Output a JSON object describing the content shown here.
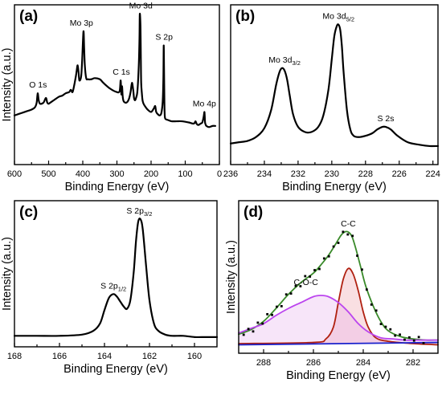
{
  "chart_data": [
    {
      "type": "line",
      "panel_label": "(a)",
      "xlabel": "Binding Energy (eV)",
      "ylabel": "Intensity (a.u.)",
      "xlim": [
        600,
        0
      ],
      "ylim": [
        0,
        100
      ],
      "xticks": [
        600,
        500,
        400,
        300,
        200,
        100,
        0
      ],
      "series": [
        {
          "color": "#000000",
          "x": [
            600,
            590,
            580,
            570,
            560,
            550,
            540,
            535,
            532,
            529,
            525,
            515,
            508,
            504,
            500,
            495,
            485,
            470,
            460,
            450,
            440,
            435,
            430,
            425,
            420,
            418,
            415,
            412,
            410,
            405,
            402,
            398,
            396,
            394,
            390,
            385,
            375,
            365,
            350,
            340,
            320,
            300,
            292,
            289,
            287,
            285,
            283,
            280,
            272,
            265,
            260,
            256,
            252,
            250,
            247,
            244,
            240,
            236,
            234,
            233,
            231,
            230,
            229,
            227,
            225,
            222,
            218,
            210,
            200,
            192,
            188,
            185,
            180,
            175,
            170,
            166,
            164,
            163,
            162,
            161,
            160,
            158,
            150,
            140,
            125,
            110,
            90,
            75,
            70,
            67,
            64,
            60,
            55,
            50,
            46,
            44,
            43,
            42,
            40,
            38,
            30,
            20,
            12
          ],
          "y": [
            12,
            13,
            14,
            15,
            16,
            17,
            19,
            23,
            31,
            25,
            22,
            23,
            27,
            23,
            22,
            23,
            25,
            28,
            29,
            31,
            32,
            34,
            32,
            38,
            46,
            50,
            55,
            48,
            42,
            45,
            58,
            84,
            70,
            55,
            44,
            43,
            43,
            44,
            43,
            40,
            35,
            32,
            33,
            42,
            30,
            37,
            28,
            24,
            23,
            26,
            32,
            40,
            33,
            27,
            25,
            27,
            33,
            55,
            78,
            99,
            88,
            62,
            40,
            31,
            25,
            22,
            20,
            17,
            15,
            18,
            20,
            15,
            13,
            12,
            14,
            24,
            44,
            72,
            50,
            23,
            12,
            9,
            8,
            7,
            7,
            7,
            6,
            5,
            7,
            5,
            4,
            4,
            5,
            6,
            11,
            15,
            12,
            6,
            4,
            3,
            2,
            3,
            3
          ]
        }
      ],
      "annotations": [
        {
          "text": "O 1s",
          "x": 531,
          "y": 31
        },
        {
          "text": "Mo 3p",
          "x": 404,
          "y": 84
        },
        {
          "text": "Mo 3d",
          "x": 230,
          "y": 99
        },
        {
          "text": "C 1s",
          "x": 287,
          "y": 42
        },
        {
          "text": "S 2p",
          "x": 162,
          "y": 72
        },
        {
          "text": "Mo 4p",
          "x": 44,
          "y": 15
        }
      ]
    },
    {
      "type": "line",
      "panel_label": "(b)",
      "xlabel": "Binding Energy (eV)",
      "ylabel": "",
      "xlim": [
        236,
        223.7
      ],
      "ylim": [
        0,
        100
      ],
      "xticks": [
        236,
        234,
        232,
        230,
        228,
        226,
        224
      ],
      "series": [
        {
          "color": "#000000",
          "x": [
            236,
            235.5,
            235,
            234.5,
            234,
            233.6,
            233.3,
            233.1,
            232.95,
            232.8,
            232.65,
            232.5,
            232.3,
            232.0,
            231.6,
            231.2,
            230.8,
            230.5,
            230.2,
            230.0,
            229.85,
            229.7,
            229.6,
            229.5,
            229.4,
            229.3,
            229.1,
            228.9,
            228.7,
            228.4,
            228.0,
            227.6,
            227.3,
            227.0,
            226.8,
            226.5,
            226.1,
            225.5,
            224.8,
            224.2,
            223.7
          ],
          "y": [
            4,
            5,
            6,
            9,
            16,
            30,
            50,
            60,
            63,
            61,
            54,
            42,
            27,
            17,
            13,
            13,
            17,
            26,
            46,
            70,
            88,
            96,
            97,
            93,
            80,
            60,
            30,
            15,
            10,
            9,
            10,
            12,
            15,
            17,
            17,
            15,
            10,
            5,
            3,
            2,
            2
          ]
        }
      ],
      "annotations": [
        {
          "text": "Mo 3d",
          "sub": "3/2",
          "x": 232.8,
          "y": 63
        },
        {
          "text": "Mo 3d",
          "sub": "5/2",
          "x": 229.6,
          "y": 97
        },
        {
          "text": "S 2s",
          "x": 226.8,
          "y": 17
        }
      ]
    },
    {
      "type": "line",
      "panel_label": "(c)",
      "xlabel": "Binding Energy (eV)",
      "ylabel": "Intensity (a.u.)",
      "xlim": [
        168,
        159
      ],
      "ylim": [
        0,
        100
      ],
      "xticks": [
        168,
        166,
        164,
        162,
        160
      ],
      "series": [
        {
          "color": "#000000",
          "x": [
            168,
            167,
            166,
            165,
            164.5,
            164.2,
            164.0,
            163.8,
            163.6,
            163.45,
            163.3,
            163.15,
            163.0,
            162.85,
            162.7,
            162.6,
            162.5,
            162.4,
            162.3,
            162.15,
            162.0,
            161.8,
            161.6,
            161.3,
            161.0,
            160.5,
            160.0,
            159.5,
            159.0
          ],
          "y": [
            3,
            3,
            3,
            4,
            7,
            13,
            24,
            34,
            37,
            35,
            31,
            27,
            25,
            32,
            55,
            80,
            96,
            98,
            90,
            60,
            32,
            13,
            7,
            4,
            3,
            3,
            2,
            2,
            2
          ]
        }
      ],
      "annotations": [
        {
          "text": "S 2p",
          "sub": "1/2",
          "x": 163.6,
          "y": 37
        },
        {
          "text": "S 2p",
          "sub": "3/2",
          "x": 162.45,
          "y": 98
        }
      ]
    },
    {
      "type": "line",
      "panel_label": "(d)",
      "xlabel": "Binding Energy (eV)",
      "ylabel": "Intensity (a.u.)",
      "xlim": [
        289,
        281
      ],
      "ylim": [
        0,
        100
      ],
      "xticks": [
        288,
        286,
        284,
        282
      ],
      "series": [
        {
          "color": "#3a8a2a",
          "x": [
            289,
            288.5,
            288,
            287.5,
            287,
            286.5,
            286,
            285.7,
            285.4,
            285.1,
            284.9,
            284.75,
            284.6,
            284.45,
            284.3,
            284.1,
            283.9,
            283.6,
            283.3,
            283,
            282.5,
            282,
            281.5,
            281
          ],
          "y": [
            11,
            15,
            22,
            33,
            45,
            55,
            63,
            70,
            78,
            88,
            95,
            98,
            98,
            94,
            84,
            68,
            52,
            35,
            22,
            14,
            9,
            7,
            6,
            6
          ]
        },
        {
          "color": "#b02010",
          "x": [
            289,
            286,
            285.5,
            285.2,
            285,
            284.8,
            284.6,
            284.4,
            284.2,
            284,
            283.8,
            283.5,
            283,
            282,
            281
          ],
          "y": [
            3,
            4,
            7,
            17,
            38,
            58,
            67,
            62,
            48,
            30,
            17,
            8,
            5,
            3,
            2
          ]
        },
        {
          "color": "#bb44ee",
          "x": [
            289,
            288.5,
            288,
            287.5,
            287,
            286.5,
            286,
            285.7,
            285.4,
            285,
            284.6,
            284.2,
            283.8,
            283.3,
            282.8,
            282.3,
            281.8,
            281.4,
            281
          ],
          "y": [
            12,
            16,
            20,
            27,
            33,
            38,
            43,
            44,
            43,
            38,
            30,
            20,
            13,
            8,
            7,
            6,
            6,
            6,
            6
          ]
        },
        {
          "color": "#1a22cc",
          "x": [
            289,
            281
          ],
          "y": [
            2,
            4
          ]
        }
      ],
      "annotations": [
        {
          "text": "C-O-C",
          "x": 286.3,
          "y": 48
        },
        {
          "text": "C-C",
          "x": 284.6,
          "y": 98
        }
      ]
    }
  ]
}
